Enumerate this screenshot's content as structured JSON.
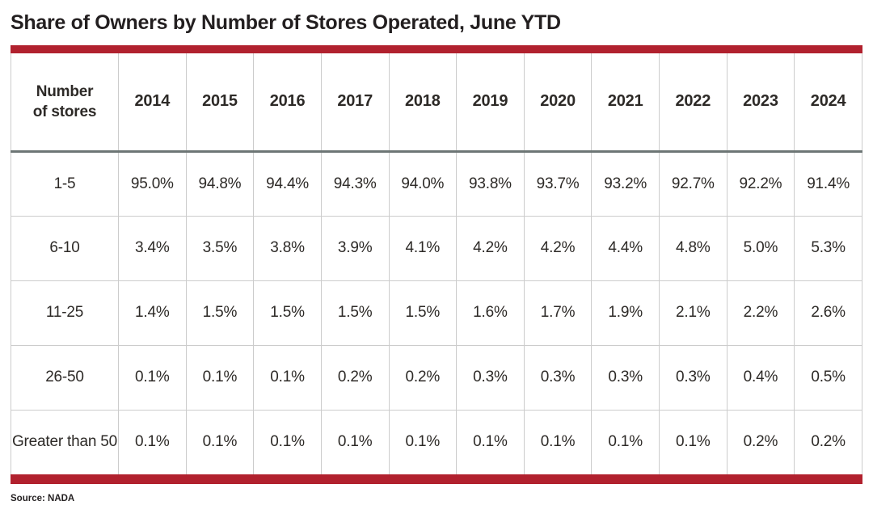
{
  "page": {
    "title": "Share of Owners by Number of Stores Operated, June YTD",
    "source": "Source: NADA"
  },
  "colors": {
    "accent_red": "#b1212e",
    "title_text": "#231f20",
    "header_rule": "#6d7675",
    "grid_line": "#cccccc",
    "cell_text": "#2d2a27"
  },
  "table": {
    "corner_header": "Number\nof stores",
    "year_headers": [
      "2014",
      "2015",
      "2016",
      "2017",
      "2018",
      "2019",
      "2020",
      "2021",
      "2022",
      "2023",
      "2024"
    ],
    "rows": [
      {
        "label": "1-5",
        "values": [
          "95.0%",
          "94.8%",
          "94.4%",
          "94.3%",
          "94.0%",
          "93.8%",
          "93.7%",
          "93.2%",
          "92.7%",
          "92.2%",
          "91.4%"
        ]
      },
      {
        "label": "6-10",
        "values": [
          "3.4%",
          "3.5%",
          "3.8%",
          "3.9%",
          "4.1%",
          "4.2%",
          "4.2%",
          "4.4%",
          "4.8%",
          "5.0%",
          "5.3%"
        ]
      },
      {
        "label": "11-25",
        "values": [
          "1.4%",
          "1.5%",
          "1.5%",
          "1.5%",
          "1.5%",
          "1.6%",
          "1.7%",
          "1.9%",
          "2.1%",
          "2.2%",
          "2.6%"
        ]
      },
      {
        "label": "26-50",
        "values": [
          "0.1%",
          "0.1%",
          "0.1%",
          "0.2%",
          "0.2%",
          "0.3%",
          "0.3%",
          "0.3%",
          "0.3%",
          "0.4%",
          "0.5%"
        ]
      },
      {
        "label": "Greater than 50",
        "values": [
          "0.1%",
          "0.1%",
          "0.1%",
          "0.1%",
          "0.1%",
          "0.1%",
          "0.1%",
          "0.1%",
          "0.1%",
          "0.2%",
          "0.2%"
        ]
      }
    ]
  },
  "chart_data": {
    "type": "table",
    "title": "Share of Owners by Number of Stores Operated, June YTD",
    "columns": [
      "Number of stores",
      "2014",
      "2015",
      "2016",
      "2017",
      "2018",
      "2019",
      "2020",
      "2021",
      "2022",
      "2023",
      "2024"
    ],
    "rows": [
      [
        "1-5",
        "95.0%",
        "94.8%",
        "94.4%",
        "94.3%",
        "94.0%",
        "93.8%",
        "93.7%",
        "93.2%",
        "92.7%",
        "92.2%",
        "91.4%"
      ],
      [
        "6-10",
        "3.4%",
        "3.5%",
        "3.8%",
        "3.9%",
        "4.1%",
        "4.2%",
        "4.2%",
        "4.4%",
        "4.8%",
        "5.0%",
        "5.3%"
      ],
      [
        "11-25",
        "1.4%",
        "1.5%",
        "1.5%",
        "1.5%",
        "1.5%",
        "1.6%",
        "1.7%",
        "1.9%",
        "2.1%",
        "2.2%",
        "2.6%"
      ],
      [
        "26-50",
        "0.1%",
        "0.1%",
        "0.1%",
        "0.2%",
        "0.2%",
        "0.3%",
        "0.3%",
        "0.3%",
        "0.3%",
        "0.4%",
        "0.5%"
      ],
      [
        "Greater than 50",
        "0.1%",
        "0.1%",
        "0.1%",
        "0.1%",
        "0.1%",
        "0.1%",
        "0.1%",
        "0.1%",
        "0.1%",
        "0.2%",
        "0.2%"
      ]
    ],
    "source": "NADA"
  }
}
